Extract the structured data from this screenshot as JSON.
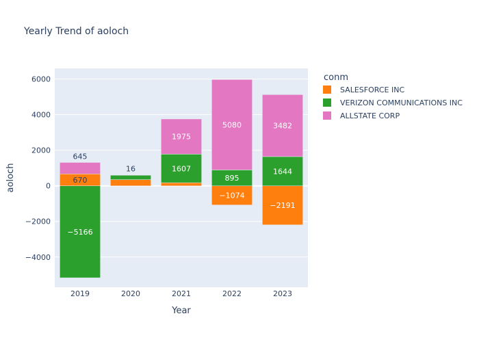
{
  "chart_data": {
    "type": "bar",
    "barmode": "relative",
    "title": "Yearly Trend of aoloch",
    "xlabel": "Year",
    "ylabel": "aoloch",
    "categories": [
      "2019",
      "2020",
      "2021",
      "2022",
      "2023"
    ],
    "ylim": [
      -5700,
      6600
    ],
    "yticks": [
      -4000,
      -2000,
      0,
      2000,
      4000,
      6000
    ],
    "ytick_labels": [
      "−4000",
      "−2000",
      "0",
      "2000",
      "4000",
      "6000"
    ],
    "grid": true,
    "legend": {
      "title": "conm",
      "position": "top-right"
    },
    "series": [
      {
        "name": "SALESFORCE INC",
        "color": "#ff7f0e",
        "values": [
          670,
          350,
          175,
          -1074,
          -2191
        ],
        "labels": [
          "670",
          "",
          "",
          "−1074",
          "−2191"
        ]
      },
      {
        "name": "VERIZON COMMUNICATIONS INC",
        "color": "#2ca02c",
        "values": [
          -5166,
          250,
          1607,
          895,
          1644
        ],
        "labels": [
          "−5166",
          "",
          "1607",
          "895",
          "1644"
        ]
      },
      {
        "name": "ALLSTATE CORP",
        "color": "#e377c2",
        "values": [
          645,
          16,
          1975,
          5080,
          3482
        ],
        "labels": [
          "645",
          "16",
          "1975",
          "5080",
          "3482"
        ]
      }
    ]
  }
}
